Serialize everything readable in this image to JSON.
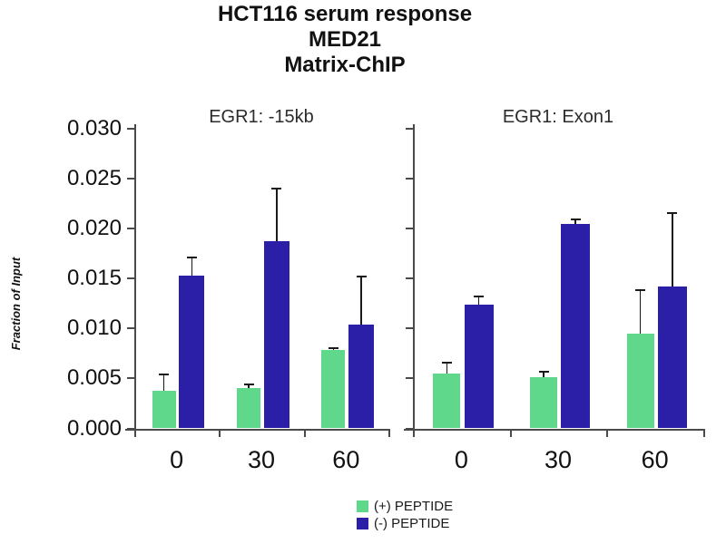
{
  "title": {
    "line1": "HCT116 serum response",
    "line2": "MED21",
    "line3": "Matrix-ChIP"
  },
  "chart_data": {
    "type": "bar",
    "ylabel": "Fraction of Input",
    "xlabel": "",
    "ylim": [
      0,
      0.03
    ],
    "ytick_labels": [
      "0.000",
      "0.005",
      "0.010",
      "0.015",
      "0.020",
      "0.025",
      "0.030"
    ],
    "categories": [
      "0",
      "30",
      "60"
    ],
    "grid": false,
    "legend_position": "bottom-center",
    "legend": [
      {
        "name": "(+) PEPTIDE",
        "color": "#5fd88c"
      },
      {
        "name": "(-) PEPTIDE",
        "color": "#2b1fa8"
      }
    ],
    "panels": [
      {
        "title": "EGR1: -15kb",
        "series": [
          {
            "name": "(+) PEPTIDE",
            "values": [
              0.0038,
              0.004,
              0.0078
            ],
            "errors_plus": [
              0.0016,
              0.0004,
              0.0002
            ]
          },
          {
            "name": "(-) PEPTIDE",
            "values": [
              0.0153,
              0.0187,
              0.0104
            ],
            "errors_plus": [
              0.0018,
              0.0053,
              0.0048
            ]
          }
        ]
      },
      {
        "title": "EGR1: Exon1",
        "series": [
          {
            "name": "(+) PEPTIDE",
            "values": [
              0.0055,
              0.0051,
              0.0095
            ],
            "errors_plus": [
              0.0011,
              0.0006,
              0.0043
            ]
          },
          {
            "name": "(-) PEPTIDE",
            "values": [
              0.0124,
              0.0204,
              0.0142
            ],
            "errors_plus": [
              0.0008,
              0.0005,
              0.0073
            ]
          }
        ]
      }
    ]
  }
}
